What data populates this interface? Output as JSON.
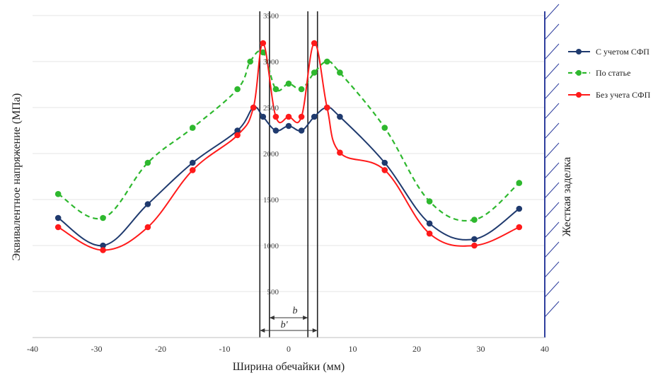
{
  "chart_data": {
    "type": "line",
    "xlabel": "Ширина обечайки (мм)",
    "ylabel": "Эквивалентное напряжение (МПа)",
    "xlim": [
      -40,
      40
    ],
    "ylim": [
      0,
      3500
    ],
    "xticks": [
      -40,
      -30,
      -20,
      -10,
      0,
      10,
      20,
      30,
      40
    ],
    "yticks": [
      500,
      1000,
      1500,
      2000,
      2500,
      3000,
      3500
    ],
    "xtick_labels": [
      "-40",
      "-30",
      "-20",
      "-10",
      "0",
      "10",
      "20",
      "30",
      "40"
    ],
    "ytick_labels": [
      "500",
      "1000",
      "1500",
      "2000",
      "2500",
      "3000",
      "3500"
    ],
    "legend_position": "right",
    "series": [
      {
        "name": "С учетом СФП",
        "color": "#1f3a6e",
        "style": "solid",
        "points": [
          [
            -36,
            1300
          ],
          [
            -29,
            1000
          ],
          [
            -22,
            1450
          ],
          [
            -15,
            1900
          ],
          [
            -8,
            2250
          ],
          [
            -5.5,
            2500
          ],
          [
            -4,
            2400
          ],
          [
            -2,
            2250
          ],
          [
            0,
            2300
          ],
          [
            2,
            2250
          ],
          [
            4,
            2400
          ],
          [
            6,
            2500
          ],
          [
            8,
            2400
          ],
          [
            15,
            1900
          ],
          [
            22,
            1240
          ],
          [
            29,
            1070
          ],
          [
            36,
            1400
          ]
        ]
      },
      {
        "name": "По статье",
        "color": "#2eb82e",
        "style": "dashed",
        "points": [
          [
            -36,
            1560
          ],
          [
            -29,
            1300
          ],
          [
            -22,
            1900
          ],
          [
            -15,
            2280
          ],
          [
            -8,
            2700
          ],
          [
            -6,
            3000
          ],
          [
            -4,
            3100
          ],
          [
            -2,
            2700
          ],
          [
            0,
            2760
          ],
          [
            2,
            2700
          ],
          [
            4,
            2880
          ],
          [
            6,
            3000
          ],
          [
            8,
            2880
          ],
          [
            15,
            2280
          ],
          [
            22,
            1480
          ],
          [
            29,
            1280
          ],
          [
            36,
            1680
          ]
        ]
      },
      {
        "name": "Без учета СФП",
        "color": "#ff1a1a",
        "style": "solid",
        "points": [
          [
            -36,
            1200
          ],
          [
            -29,
            950
          ],
          [
            -22,
            1200
          ],
          [
            -15,
            1820
          ],
          [
            -8,
            2200
          ],
          [
            -5.5,
            2500
          ],
          [
            -4,
            3200
          ],
          [
            -2,
            2400
          ],
          [
            0,
            2400
          ],
          [
            2,
            2400
          ],
          [
            4,
            3200
          ],
          [
            6,
            2500
          ],
          [
            8,
            2010
          ],
          [
            15,
            1820
          ],
          [
            22,
            1130
          ],
          [
            29,
            1000
          ],
          [
            36,
            1200
          ]
        ]
      }
    ],
    "vertical_lines_x": [
      -4.5,
      -3,
      3,
      4.5
    ],
    "annotations": {
      "b_label": "b",
      "b_prime_label": "b'",
      "wall_label": "Жесткая заделка"
    }
  }
}
